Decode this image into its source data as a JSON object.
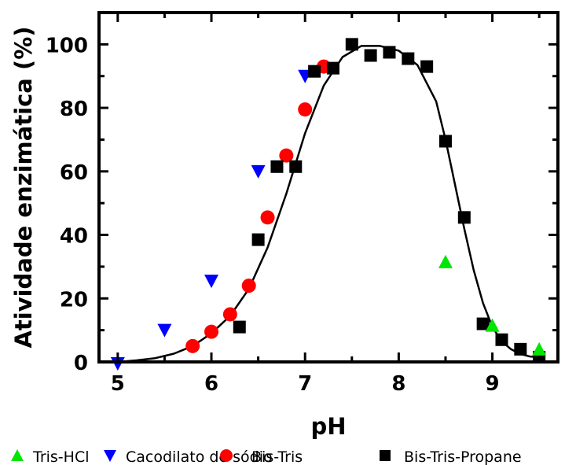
{
  "chart_data": {
    "type": "scatter",
    "xlabel": "pH",
    "ylabel": "Atividade enzimática (%)",
    "xlim": [
      4.8,
      9.7
    ],
    "ylim": [
      0,
      110
    ],
    "xticks": [
      "5",
      "6",
      "7",
      "8",
      "9"
    ],
    "yticks": [
      "0",
      "20",
      "40",
      "60",
      "80",
      "100"
    ],
    "grid": false,
    "legend_position": "bottom",
    "series": [
      {
        "name": "Tris-HCl",
        "marker": "triangle-up",
        "color": "#00e600",
        "points": [
          [
            8.5,
            31.5
          ],
          [
            9.0,
            11.5
          ],
          [
            9.5,
            4.0
          ]
        ]
      },
      {
        "name": "Cacodilato de sódio",
        "marker": "triangle-down",
        "color": "#0000ff",
        "points": [
          [
            5.0,
            -0.5
          ],
          [
            5.5,
            10.0
          ],
          [
            6.0,
            25.5
          ],
          [
            6.5,
            60.0
          ],
          [
            7.0,
            90.0
          ]
        ]
      },
      {
        "name": "Bis-Tris",
        "marker": "circle",
        "color": "#ff0000",
        "points": [
          [
            5.8,
            5.0
          ],
          [
            6.0,
            9.5
          ],
          [
            6.2,
            15.0
          ],
          [
            6.4,
            24.0
          ],
          [
            6.6,
            45.5
          ],
          [
            6.8,
            65.0
          ],
          [
            7.0,
            79.5
          ],
          [
            7.2,
            93.0
          ]
        ]
      },
      {
        "name": "Bis-Tris-Propane",
        "marker": "square",
        "color": "#000000",
        "points": [
          [
            6.3,
            11.0
          ],
          [
            6.5,
            38.5
          ],
          [
            6.7,
            61.5
          ],
          [
            6.9,
            61.5
          ],
          [
            7.1,
            91.5
          ],
          [
            7.3,
            92.5
          ],
          [
            7.5,
            100.0
          ],
          [
            7.7,
            96.5
          ],
          [
            7.9,
            97.5
          ],
          [
            8.1,
            95.5
          ],
          [
            8.3,
            93.0
          ],
          [
            8.5,
            69.5
          ],
          [
            8.7,
            45.5
          ],
          [
            8.9,
            12.0
          ],
          [
            9.1,
            7.0
          ],
          [
            9.3,
            4.0
          ],
          [
            9.5,
            1.5
          ]
        ]
      }
    ],
    "fit_curve": {
      "color": "#000000",
      "points": [
        [
          5.0,
          0.0
        ],
        [
          5.2,
          0.5
        ],
        [
          5.4,
          1.2
        ],
        [
          5.6,
          2.6
        ],
        [
          5.8,
          5.0
        ],
        [
          6.0,
          9.0
        ],
        [
          6.2,
          14.5
        ],
        [
          6.4,
          23.0
        ],
        [
          6.6,
          36.0
        ],
        [
          6.8,
          53.0
        ],
        [
          7.0,
          72.0
        ],
        [
          7.2,
          87.0
        ],
        [
          7.4,
          96.0
        ],
        [
          7.6,
          99.5
        ],
        [
          7.8,
          99.5
        ],
        [
          8.0,
          98.0
        ],
        [
          8.2,
          93.5
        ],
        [
          8.4,
          82.0
        ],
        [
          8.5,
          70.0
        ],
        [
          8.6,
          56.0
        ],
        [
          8.7,
          42.0
        ],
        [
          8.8,
          29.0
        ],
        [
          8.9,
          18.5
        ],
        [
          9.0,
          11.0
        ],
        [
          9.1,
          6.5
        ],
        [
          9.2,
          4.0
        ],
        [
          9.3,
          2.5
        ],
        [
          9.4,
          1.7
        ],
        [
          9.5,
          1.5
        ]
      ]
    }
  }
}
